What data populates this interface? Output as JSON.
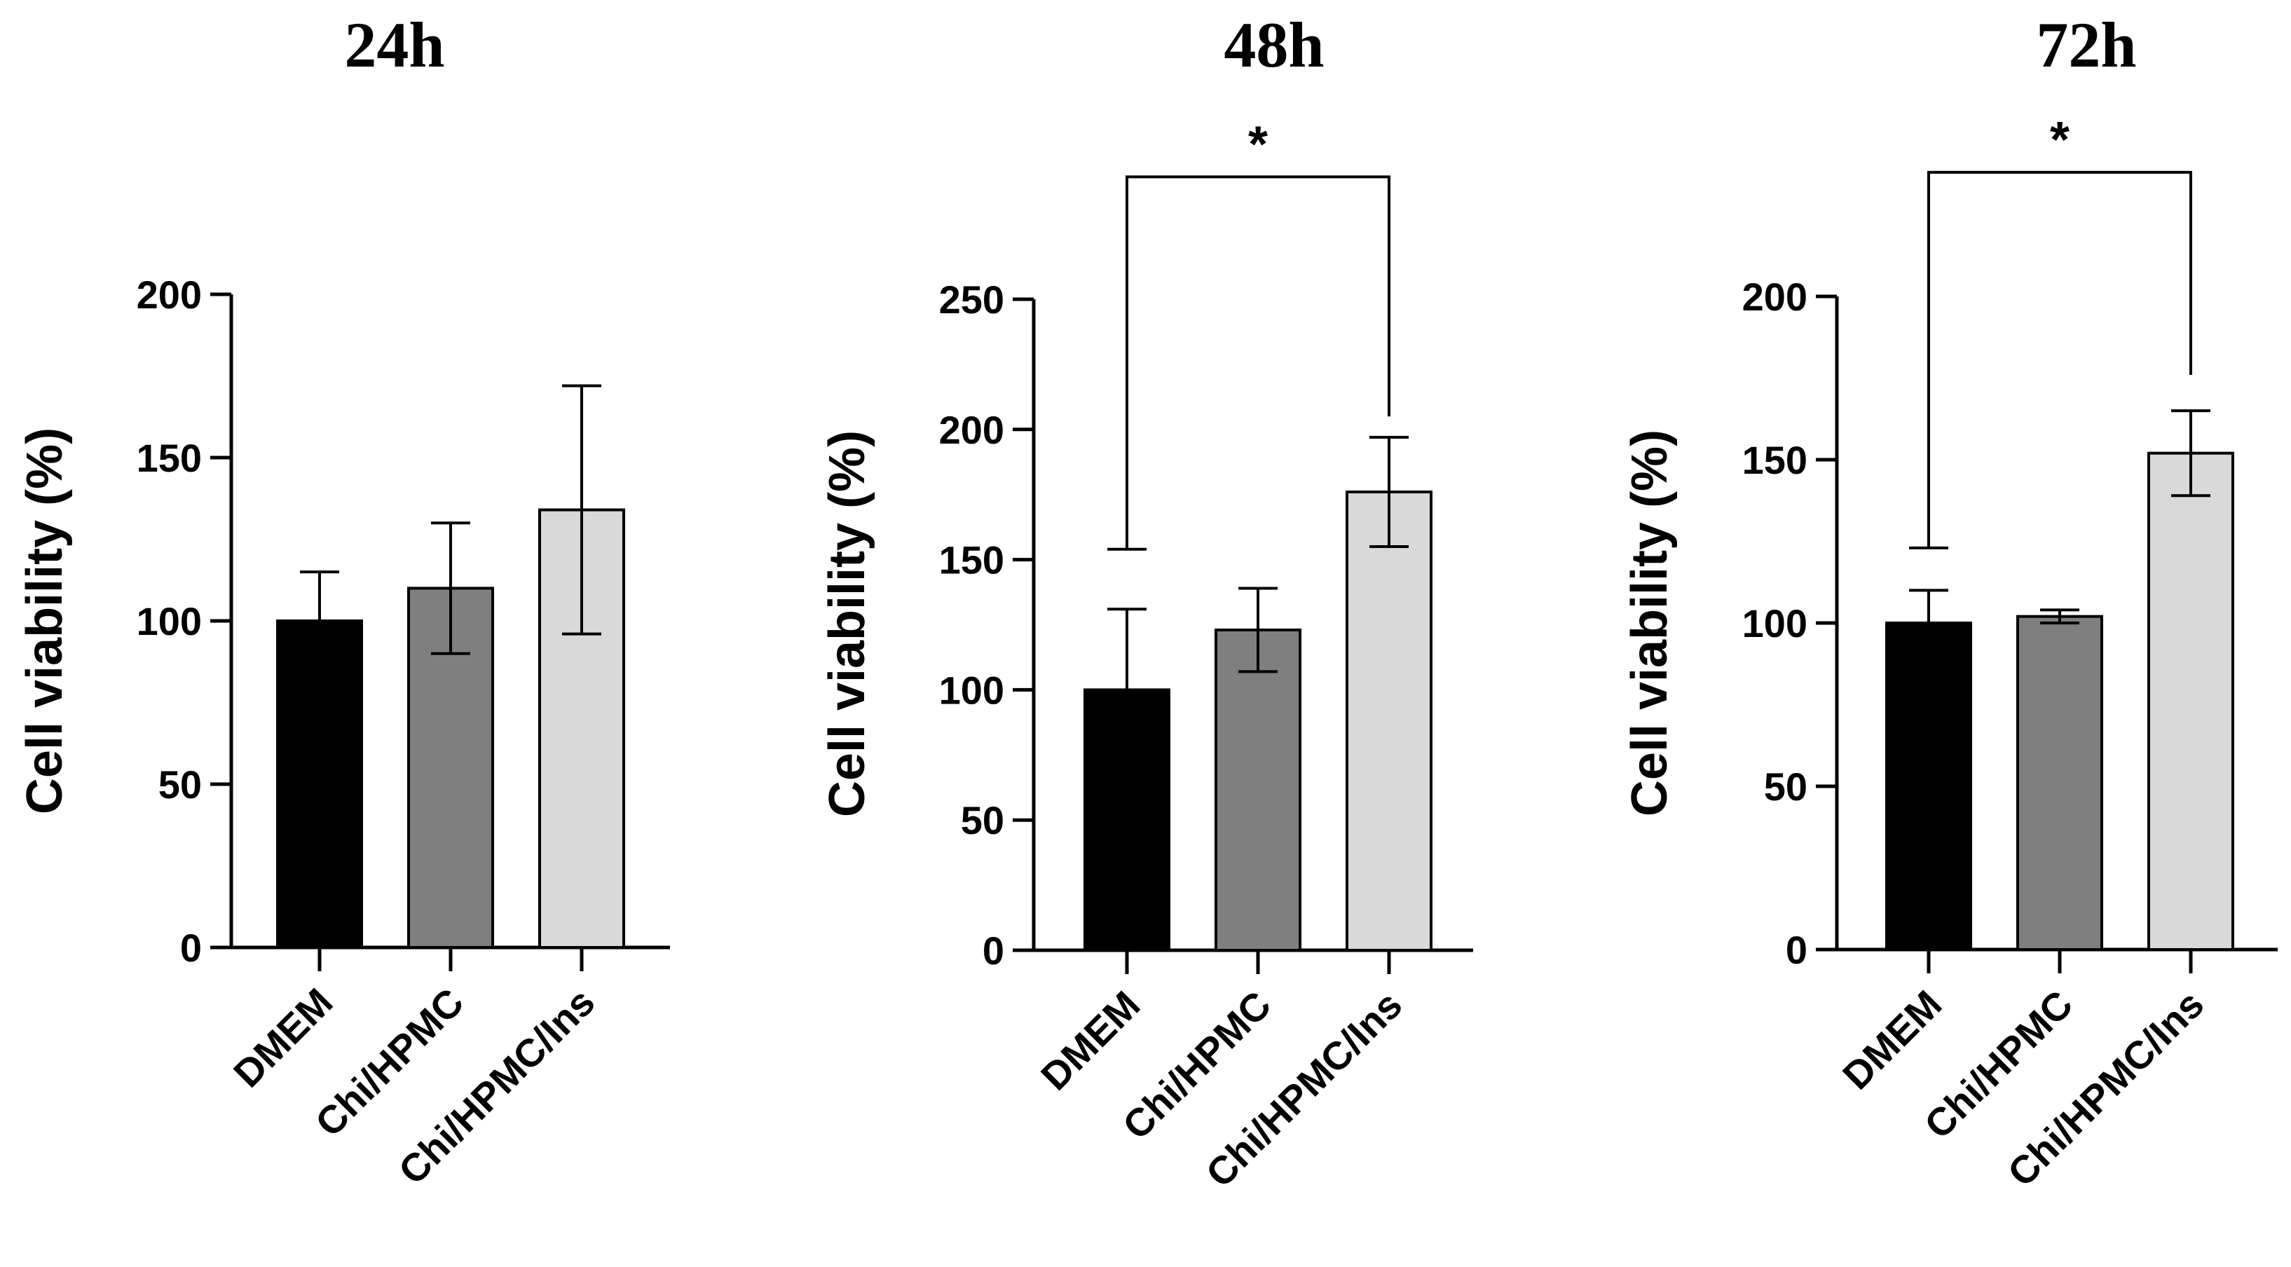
{
  "chart_data": [
    {
      "type": "bar",
      "title": "24h",
      "ylabel": "Cell viability (%)",
      "xlabel": "",
      "categories": [
        "DMEM",
        "Chi/HPMC",
        "Chi/HPMC/Ins"
      ],
      "values": [
        100,
        110,
        134
      ],
      "errors": [
        15,
        20,
        38
      ],
      "colors": [
        "#000000",
        "#7f7f7f",
        "#d9d9d9"
      ],
      "ylim": [
        0,
        200
      ],
      "yticks": [
        0,
        50,
        100,
        150,
        200
      ],
      "significance": []
    },
    {
      "type": "bar",
      "title": "48h",
      "ylabel": "Cell viability (%)",
      "xlabel": "",
      "categories": [
        "DMEM",
        "Chi/HPMC",
        "Chi/HPMC/Ins"
      ],
      "values": [
        100,
        123,
        176
      ],
      "errors": [
        31,
        16,
        21
      ],
      "colors": [
        "#000000",
        "#7f7f7f",
        "#d9d9d9"
      ],
      "ylim": [
        0,
        250
      ],
      "yticks": [
        0,
        50,
        100,
        150,
        200,
        250
      ],
      "significance": [
        {
          "from": 0,
          "to": 2,
          "label": "*",
          "bracket_value": 297,
          "left_end_value": 154,
          "right_end_value": 205
        }
      ]
    },
    {
      "type": "bar",
      "title": "72h",
      "ylabel": "Cell viability (%)",
      "xlabel": "",
      "categories": [
        "DMEM",
        "Chi/HPMC",
        "Chi/HPMC/Ins"
      ],
      "values": [
        100,
        102,
        152
      ],
      "errors": [
        10,
        2,
        13
      ],
      "colors": [
        "#000000",
        "#7f7f7f",
        "#d9d9d9"
      ],
      "ylim": [
        0,
        200
      ],
      "yticks": [
        0,
        50,
        100,
        150,
        200
      ],
      "significance": [
        {
          "from": 0,
          "to": 2,
          "label": "*",
          "bracket_value": 238,
          "left_end_value": 123,
          "right_end_value": 176
        }
      ]
    }
  ]
}
